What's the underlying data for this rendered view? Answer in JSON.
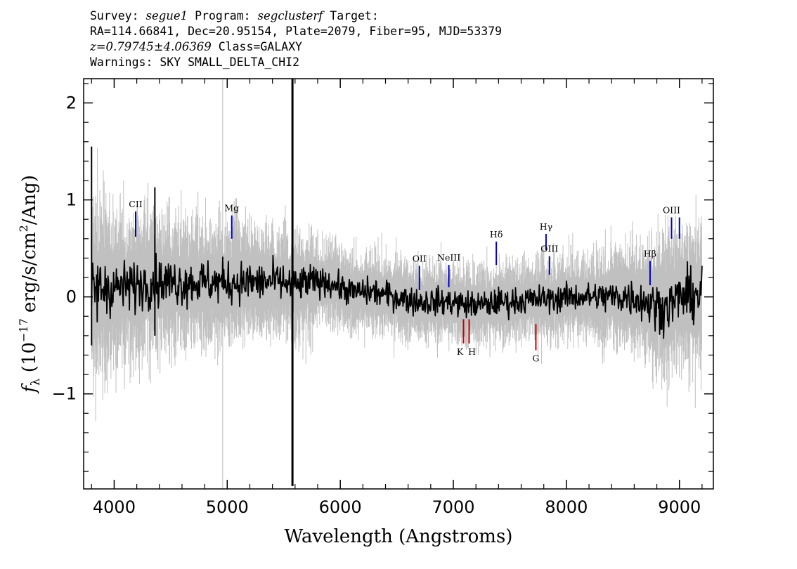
{
  "header": {
    "survey_label": "Survey:",
    "survey": "segue1",
    "program_label": "Program:",
    "program": "segclusterf",
    "target_label": "Target:",
    "line2": "RA=114.66841, Dec=20.95154, Plate=2079, Fiber=95, MJD=53379",
    "redshift": "z=0.79745±4.06369",
    "class_text": "Class=GALAXY",
    "warnings": "Warnings: SKY SMALL_DELTA_CHI2"
  },
  "chart_data": {
    "type": "line",
    "title": "",
    "xlabel": "Wavelength (Angstroms)",
    "ylabel": "f_λ (10^-17 erg/s/cm^2/Ang)",
    "xlim": [
      3730,
      9300
    ],
    "ylim": [
      -1.98,
      2.25
    ],
    "x_ticks": [
      4000,
      5000,
      6000,
      7000,
      8000,
      9000
    ],
    "y_ticks": [
      -1,
      0,
      1,
      2
    ],
    "y_tick_labels": [
      "−1",
      "0",
      "1",
      "2"
    ],
    "colors": {
      "flux": "#000000",
      "error": "#c0c0c0",
      "emission": "#0000cc",
      "absorption": "#cc0000"
    },
    "series": [
      {
        "name": "",
        "style": "noisy-spectrum",
        "x": [
          3800,
          3900,
          4000,
          4100,
          4200,
          4300,
          4400,
          4500,
          4600,
          4700,
          4800,
          4900,
          5000,
          5100,
          5200,
          5300,
          5400,
          5500,
          5600,
          5700,
          5800,
          5900,
          6000,
          6100,
          6200,
          6300,
          6400,
          6500,
          6600,
          6700,
          6800,
          6900,
          7000,
          7100,
          7200,
          7300,
          7400,
          7500,
          7600,
          7700,
          7800,
          7900,
          8000,
          8100,
          8200,
          8300,
          8400,
          8500,
          8600,
          8700,
          8800,
          8900,
          9000,
          9100,
          9200
        ],
        "y": [
          0.05,
          0.1,
          0.1,
          0.1,
          0.12,
          0.15,
          0.15,
          0.15,
          0.15,
          0.15,
          0.15,
          0.15,
          0.15,
          0.15,
          0.15,
          0.15,
          0.16,
          0.15,
          0.1,
          0.15,
          0.15,
          0.15,
          0.1,
          0.05,
          0.05,
          0.05,
          0.02,
          0.0,
          -0.03,
          -0.05,
          -0.05,
          -0.05,
          -0.05,
          -0.08,
          -0.08,
          -0.08,
          -0.05,
          -0.05,
          -0.04,
          -0.03,
          -0.02,
          -0.02,
          0.0,
          0.0,
          0.0,
          0.0,
          0.0,
          0.0,
          0.0,
          -0.05,
          -0.1,
          -0.1,
          0.0,
          0.0,
          0.05
        ]
      }
    ],
    "features": [
      {
        "x": 5577,
        "y_min": -1.95,
        "y_max": 2.25,
        "note": "sky-line spike"
      },
      {
        "x": 4360,
        "y_min": -0.4,
        "y_max": 1.13
      },
      {
        "x": 3800,
        "y_min": -0.5,
        "y_max": 1.55
      }
    ],
    "reference_line": {
      "x": 4960
    },
    "emission_lines": [
      {
        "label": "CII",
        "x": 4190,
        "y_min": 0.62,
        "y_max": 0.88
      },
      {
        "label": "Mg",
        "x": 5040,
        "y_min": 0.6,
        "y_max": 0.84
      },
      {
        "label": "OII",
        "x": 6700,
        "y_min": 0.07,
        "y_max": 0.32
      },
      {
        "label": "NeIII",
        "x": 6960,
        "y_min": 0.1,
        "y_max": 0.33
      },
      {
        "label": "Hδ",
        "x": 7380,
        "y_min": 0.33,
        "y_max": 0.57
      },
      {
        "label": "Hγ",
        "x": 7820,
        "y_min": 0.48,
        "y_max": 0.65
      },
      {
        "label": "OIII",
        "x": 7850,
        "y_min": 0.23,
        "y_max": 0.42
      },
      {
        "label": "Hβ",
        "x": 8740,
        "y_min": 0.12,
        "y_max": 0.37
      },
      {
        "label": "OIII",
        "x": 8930,
        "y_min": 0.6,
        "y_max": 0.82
      },
      {
        "label": "",
        "x": 9000,
        "y_min": 0.6,
        "y_max": 0.82
      }
    ],
    "absorption_lines": [
      {
        "label": "K",
        "x": 7090,
        "y_min": -0.48,
        "y_max": -0.23
      },
      {
        "label": "H",
        "x": 7140,
        "y_min": -0.48,
        "y_max": -0.23
      },
      {
        "label": "G",
        "x": 7730,
        "y_min": -0.55,
        "y_max": -0.28
      }
    ]
  }
}
